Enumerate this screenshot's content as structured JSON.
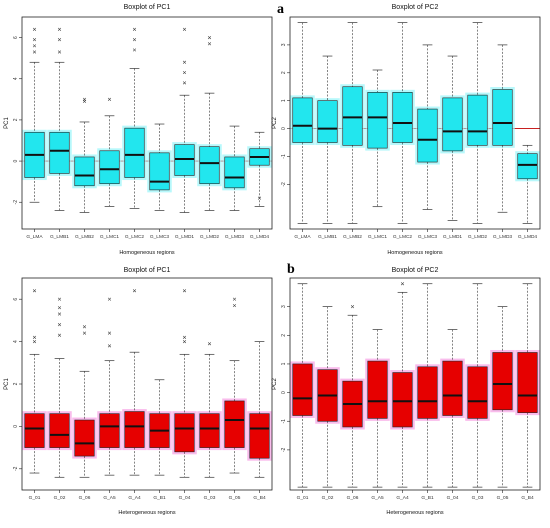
{
  "panel_labels": [
    "a",
    "b"
  ],
  "chart_data": [
    {
      "type": "boxplot",
      "title": "Boxplot of PC1",
      "xlabel": "Homogeneous regions",
      "ylabel": "PC1",
      "ylim": [
        -3.3,
        7.0
      ],
      "yticks": [
        -2,
        0,
        2,
        4,
        6
      ],
      "ref_line": 0,
      "box_color": "#22e6ee",
      "glow_color": "#9ff6fa",
      "ref_color": "#c00000",
      "categories": [
        "G_LMA",
        "G_LMB1",
        "G_LMB2",
        "G_LMC1",
        "G_LMC2",
        "G_LMC3",
        "G_LMD1",
        "G_LMD2",
        "G_LMD3",
        "G_LMD4"
      ],
      "boxes": [
        {
          "lw": -2.0,
          "q1": -0.8,
          "med": 0.3,
          "q3": 1.4,
          "uw": 4.8,
          "out": [
            5.3,
            5.6,
            5.9,
            6.4
          ]
        },
        {
          "lw": -2.4,
          "q1": -0.6,
          "med": 0.5,
          "q3": 1.4,
          "uw": 4.8,
          "out": [
            5.3,
            5.9,
            6.4
          ]
        },
        {
          "lw": -2.5,
          "q1": -1.2,
          "med": -0.7,
          "q3": 0.2,
          "uw": 1.9,
          "out": [
            2.9,
            3.0
          ]
        },
        {
          "lw": -2.2,
          "q1": -1.1,
          "med": -0.4,
          "q3": 0.5,
          "uw": 2.2,
          "out": [
            3.0
          ]
        },
        {
          "lw": -2.3,
          "q1": -0.8,
          "med": 0.3,
          "q3": 1.6,
          "uw": 4.5,
          "out": [
            5.4,
            5.9,
            6.4
          ]
        },
        {
          "lw": -2.4,
          "q1": -1.4,
          "med": -1.0,
          "q3": 0.4,
          "uw": 1.8,
          "out": []
        },
        {
          "lw": -2.5,
          "q1": -0.7,
          "med": 0.1,
          "q3": 0.8,
          "uw": 3.2,
          "out": [
            3.8,
            4.3,
            4.8,
            6.4
          ]
        },
        {
          "lw": -2.4,
          "q1": -1.1,
          "med": -0.1,
          "q3": 0.7,
          "uw": 3.3,
          "out": [
            5.7,
            6.0
          ]
        },
        {
          "lw": -2.4,
          "q1": -1.3,
          "med": -0.8,
          "q3": 0.2,
          "uw": 1.7,
          "out": []
        },
        {
          "lw": -2.2,
          "q1": -0.2,
          "med": 0.2,
          "q3": 0.6,
          "uw": 1.4,
          "out": [
            -1.8
          ]
        }
      ]
    },
    {
      "type": "boxplot",
      "title": "Boxplot of PC2",
      "xlabel": "Homogeneous regions",
      "ylabel": "PC2",
      "ylim": [
        -3.6,
        4.0
      ],
      "yticks": [
        -2,
        -1,
        0,
        1,
        2,
        3
      ],
      "ref_line": 0,
      "box_color": "#22e6ee",
      "glow_color": "#9ff6fa",
      "ref_color": "#c00000",
      "categories": [
        "G_LMA",
        "G_LMB1",
        "G_LMB2",
        "G_LMC1",
        "G_LMC2",
        "G_LMC3",
        "G_LMD1",
        "G_LMD2",
        "G_LMD3",
        "G_LMD4"
      ],
      "boxes": [
        {
          "lw": -3.4,
          "q1": -0.5,
          "med": 0.1,
          "q3": 1.1,
          "uw": 3.8,
          "out": []
        },
        {
          "lw": -3.4,
          "q1": -0.5,
          "med": 0.0,
          "q3": 1.0,
          "uw": 2.6,
          "out": []
        },
        {
          "lw": -3.4,
          "q1": -0.6,
          "med": 0.4,
          "q3": 1.5,
          "uw": 3.8,
          "out": []
        },
        {
          "lw": -2.8,
          "q1": -0.7,
          "med": 0.4,
          "q3": 1.3,
          "uw": 2.1,
          "out": []
        },
        {
          "lw": -3.4,
          "q1": -0.5,
          "med": 0.2,
          "q3": 1.3,
          "uw": 3.8,
          "out": []
        },
        {
          "lw": -2.9,
          "q1": -1.2,
          "med": -0.4,
          "q3": 0.7,
          "uw": 3.0,
          "out": []
        },
        {
          "lw": -3.3,
          "q1": -0.8,
          "med": -0.1,
          "q3": 1.1,
          "uw": 2.6,
          "out": []
        },
        {
          "lw": -3.4,
          "q1": -0.6,
          "med": -0.1,
          "q3": 1.2,
          "uw": 3.8,
          "out": []
        },
        {
          "lw": -3.0,
          "q1": -0.6,
          "med": 0.2,
          "q3": 1.4,
          "uw": 3.0,
          "out": []
        },
        {
          "lw": -3.4,
          "q1": -1.8,
          "med": -1.3,
          "q3": -0.9,
          "uw": -0.6,
          "out": []
        }
      ]
    },
    {
      "type": "boxplot",
      "title": "Boxplot of PC1",
      "xlabel": "Heterogeneous regions",
      "ylabel": "PC1",
      "ylim": [
        -3.0,
        7.0
      ],
      "yticks": [
        -2,
        0,
        2,
        4,
        6
      ],
      "ref_line": null,
      "box_color": "#e60000",
      "glow_color": "#f7a6e6",
      "ref_color": "#c00000",
      "categories": [
        "G_01",
        "G_02",
        "G_06",
        "G_A5",
        "G_A4",
        "G_B1",
        "G_04",
        "G_03",
        "G_05",
        "G_B4"
      ],
      "boxes": [
        {
          "lw": -2.2,
          "q1": -1.0,
          "med": -0.1,
          "q3": 0.6,
          "uw": 3.4,
          "out": [
            4.0,
            4.2,
            6.4
          ]
        },
        {
          "lw": -2.4,
          "q1": -1.0,
          "med": -0.4,
          "q3": 0.6,
          "uw": 3.2,
          "out": [
            4.3,
            4.8,
            5.3,
            5.6,
            6.0
          ]
        },
        {
          "lw": -2.4,
          "q1": -1.4,
          "med": -0.8,
          "q3": 0.3,
          "uw": 2.6,
          "out": [
            4.4,
            4.7
          ]
        },
        {
          "lw": -2.3,
          "q1": -1.0,
          "med": 0.0,
          "q3": 0.6,
          "uw": 3.1,
          "out": [
            3.8,
            4.4,
            6.0
          ]
        },
        {
          "lw": -2.3,
          "q1": -1.0,
          "med": 0.0,
          "q3": 0.7,
          "uw": 3.5,
          "out": [
            6.4
          ]
        },
        {
          "lw": -2.3,
          "q1": -1.0,
          "med": -0.2,
          "q3": 0.6,
          "uw": 2.2,
          "out": []
        },
        {
          "lw": -2.4,
          "q1": -1.2,
          "med": -0.1,
          "q3": 0.6,
          "uw": 3.4,
          "out": [
            4.0,
            4.2,
            6.4
          ]
        },
        {
          "lw": -2.4,
          "q1": -1.0,
          "med": -0.1,
          "q3": 0.6,
          "uw": 3.4,
          "out": [
            3.9
          ]
        },
        {
          "lw": -2.2,
          "q1": -1.0,
          "med": 0.3,
          "q3": 1.2,
          "uw": 3.1,
          "out": [
            5.7,
            6.0
          ]
        },
        {
          "lw": -2.4,
          "q1": -1.5,
          "med": -0.1,
          "q3": 0.6,
          "uw": 4.0,
          "out": []
        }
      ]
    },
    {
      "type": "boxplot",
      "title": "Boxplot of PC2",
      "xlabel": "Heterogeneous regions",
      "ylabel": "PC2",
      "ylim": [
        -3.4,
        4.0
      ],
      "yticks": [
        -2,
        -1,
        0,
        1,
        2,
        3
      ],
      "ref_line": 0,
      "box_color": "#e60000",
      "glow_color": "#f7a6e6",
      "ref_color": "#ffffff",
      "categories": [
        "G_01",
        "G_02",
        "G_06",
        "G_A5",
        "G_A4",
        "G_B1",
        "G_04",
        "G_03",
        "G_05",
        "G_B4"
      ],
      "boxes": [
        {
          "lw": -3.3,
          "q1": -0.8,
          "med": -0.2,
          "q3": 1.0,
          "uw": 3.8,
          "out": []
        },
        {
          "lw": -3.3,
          "q1": -1.0,
          "med": -0.1,
          "q3": 0.8,
          "uw": 3.0,
          "out": []
        },
        {
          "lw": -3.3,
          "q1": -1.2,
          "med": -0.4,
          "q3": 0.4,
          "uw": 2.7,
          "out": [
            3.0
          ]
        },
        {
          "lw": -3.3,
          "q1": -0.9,
          "med": -0.3,
          "q3": 1.1,
          "uw": 2.2,
          "out": []
        },
        {
          "lw": -3.3,
          "q1": -1.2,
          "med": -0.3,
          "q3": 0.7,
          "uw": 3.5,
          "out": [
            3.8
          ]
        },
        {
          "lw": -3.3,
          "q1": -0.9,
          "med": -0.3,
          "q3": 0.9,
          "uw": 3.8,
          "out": []
        },
        {
          "lw": -3.3,
          "q1": -0.8,
          "med": -0.1,
          "q3": 1.1,
          "uw": 2.2,
          "out": []
        },
        {
          "lw": -3.3,
          "q1": -0.9,
          "med": -0.3,
          "q3": 0.9,
          "uw": 3.8,
          "out": []
        },
        {
          "lw": -3.3,
          "q1": -0.6,
          "med": 0.3,
          "q3": 1.4,
          "uw": 3.0,
          "out": []
        },
        {
          "lw": -3.3,
          "q1": -0.7,
          "med": -0.1,
          "q3": 1.4,
          "uw": 3.8,
          "out": []
        }
      ]
    }
  ]
}
